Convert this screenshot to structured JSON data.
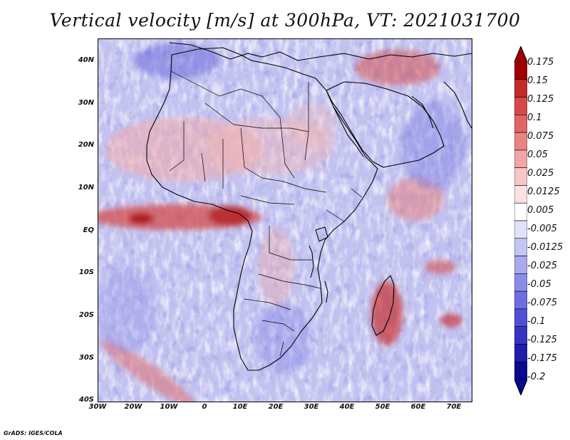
{
  "title": "Vertical velocity [m/s] at 300hPa, VT: 2021031700",
  "credit": "GrADS: IGES/COLA",
  "map": {
    "lat_labels": [
      "40N",
      "30N",
      "20N",
      "10N",
      "EQ",
      "10S",
      "20S",
      "30S",
      "40S"
    ],
    "lon_labels": [
      "30W",
      "20W",
      "10W",
      "0",
      "10E",
      "20E",
      "30E",
      "40E",
      "50E",
      "60E",
      "70E"
    ],
    "lat_range": [
      -40,
      45
    ],
    "lon_range": [
      -30,
      75
    ],
    "background_color": "#c9c9f2",
    "coastline_color": "#000000"
  },
  "colorbar": {
    "labels": [
      "0.175",
      "0.15",
      "0.125",
      "0.1",
      "0.075",
      "0.05",
      "0.025",
      "0.0125",
      "0.005",
      "-0.005",
      "-0.0125",
      "-0.025",
      "-0.05",
      "-0.075",
      "-0.1",
      "-0.125",
      "-0.175",
      "-0.2"
    ],
    "colors": [
      "#a00000",
      "#c42a2a",
      "#d94848",
      "#e26464",
      "#ea8484",
      "#f1a5a5",
      "#f7c6c6",
      "#fbe2e2",
      "#ffffff",
      "#e2e2fb",
      "#c6c6f5",
      "#a9a9ef",
      "#8c8ce8",
      "#6e6ee0",
      "#5050d5",
      "#3434c4",
      "#1e1eaa",
      "#0a0a8c"
    ]
  }
}
